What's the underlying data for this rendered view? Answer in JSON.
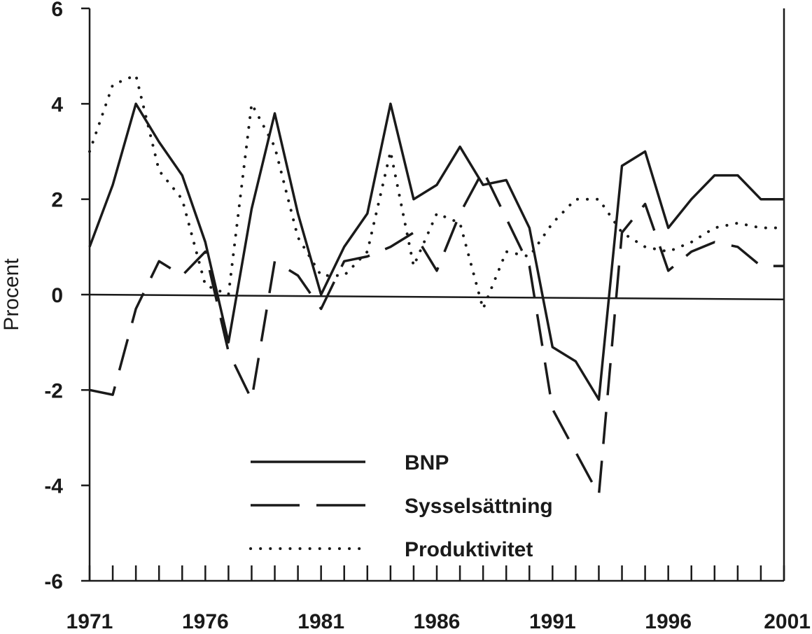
{
  "chart_data": {
    "type": "line",
    "title": "",
    "xlabel": "",
    "ylabel": "Procent",
    "xlim": [
      1971,
      2001
    ],
    "ylim": [
      -6,
      6
    ],
    "x_ticks": [
      1971,
      1976,
      1981,
      1986,
      1991,
      1996,
      2001
    ],
    "y_ticks": [
      -6,
      -4,
      -2,
      0,
      2,
      4,
      6
    ],
    "grid": false,
    "legend_position": "bottom-center",
    "x": [
      1971,
      1972,
      1973,
      1974,
      1975,
      1976,
      1977,
      1978,
      1979,
      1980,
      1981,
      1982,
      1983,
      1984,
      1985,
      1986,
      1987,
      1988,
      1989,
      1990,
      1991,
      1992,
      1993,
      1994,
      1995,
      1996,
      1997,
      1998,
      1999,
      2000,
      2001
    ],
    "series": [
      {
        "name": "BNP",
        "style": "solid",
        "values": [
          1.0,
          2.3,
          4.0,
          3.2,
          2.5,
          1.1,
          -1.0,
          1.8,
          3.8,
          1.7,
          0.0,
          1.0,
          1.7,
          4.0,
          2.0,
          2.3,
          3.1,
          2.3,
          2.4,
          1.4,
          -1.1,
          -1.4,
          -2.2,
          2.7,
          3.0,
          1.4,
          2.0,
          2.5,
          2.5,
          2.0,
          2.0
        ]
      },
      {
        "name": "Sysselsättning",
        "style": "dashed",
        "values": [
          -2.0,
          -2.1,
          -0.3,
          0.7,
          0.4,
          0.9,
          -1.2,
          -2.2,
          0.7,
          0.4,
          -0.3,
          0.7,
          0.8,
          1.0,
          1.3,
          0.5,
          1.7,
          2.6,
          1.6,
          0.6,
          -2.4,
          -3.3,
          -4.2,
          1.3,
          1.9,
          0.5,
          0.9,
          1.1,
          1.0,
          0.6,
          0.6
        ]
      },
      {
        "name": "Produktivitet",
        "style": "dotted",
        "values": [
          3.0,
          4.4,
          4.6,
          2.6,
          2.0,
          0.2,
          0.0,
          4.0,
          3.1,
          1.2,
          0.4,
          0.4,
          0.9,
          3.0,
          0.6,
          1.7,
          1.5,
          -0.3,
          0.9,
          0.8,
          1.5,
          2.0,
          2.0,
          1.3,
          1.0,
          0.9,
          1.1,
          1.4,
          1.5,
          1.4,
          1.4
        ]
      }
    ],
    "zero_line": {
      "values": [
        0.0,
        -0.1
      ]
    }
  }
}
